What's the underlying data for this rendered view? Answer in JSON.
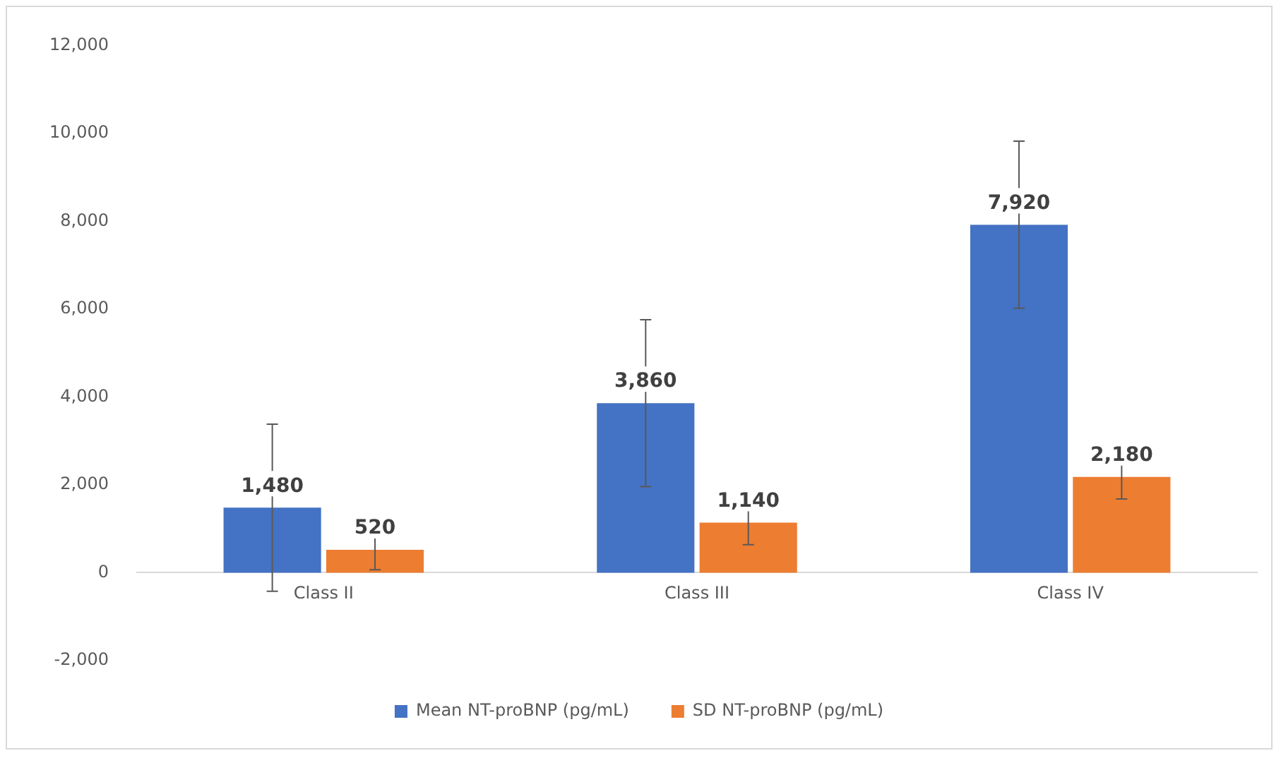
{
  "chart_data": {
    "type": "bar",
    "categories": [
      "Class II",
      "Class III",
      "Class IV"
    ],
    "series": [
      {
        "name": "Mean NT-proBNP (pg/mL)",
        "color": "#4472c4",
        "values": [
          1480,
          3860,
          7920
        ],
        "value_labels": [
          "1,480",
          "3,860",
          "7,920"
        ],
        "errors": [
          1900,
          1900,
          1900
        ]
      },
      {
        "name": "SD NT-proBNP (pg/mL)",
        "color": "#ed7d31",
        "values": [
          520,
          1140,
          2180
        ],
        "value_labels": [
          "520",
          "1,140",
          "2,180"
        ],
        "errors": [
          450,
          500,
          500
        ]
      }
    ],
    "ylim": [
      -2000,
      12000
    ],
    "yticks": [
      {
        "value": -2000,
        "label": "-2,000"
      },
      0,
      {
        "value": 2000,
        "label": "2,000"
      },
      {
        "value": 4000,
        "label": "4,000"
      },
      {
        "value": 6000,
        "label": "6,000"
      },
      {
        "value": 8000,
        "label": "8,000"
      },
      {
        "value": 10000,
        "label": "10,000"
      },
      {
        "value": 12000,
        "label": "12,000"
      }
    ],
    "grid": false,
    "legend": "bottom"
  }
}
